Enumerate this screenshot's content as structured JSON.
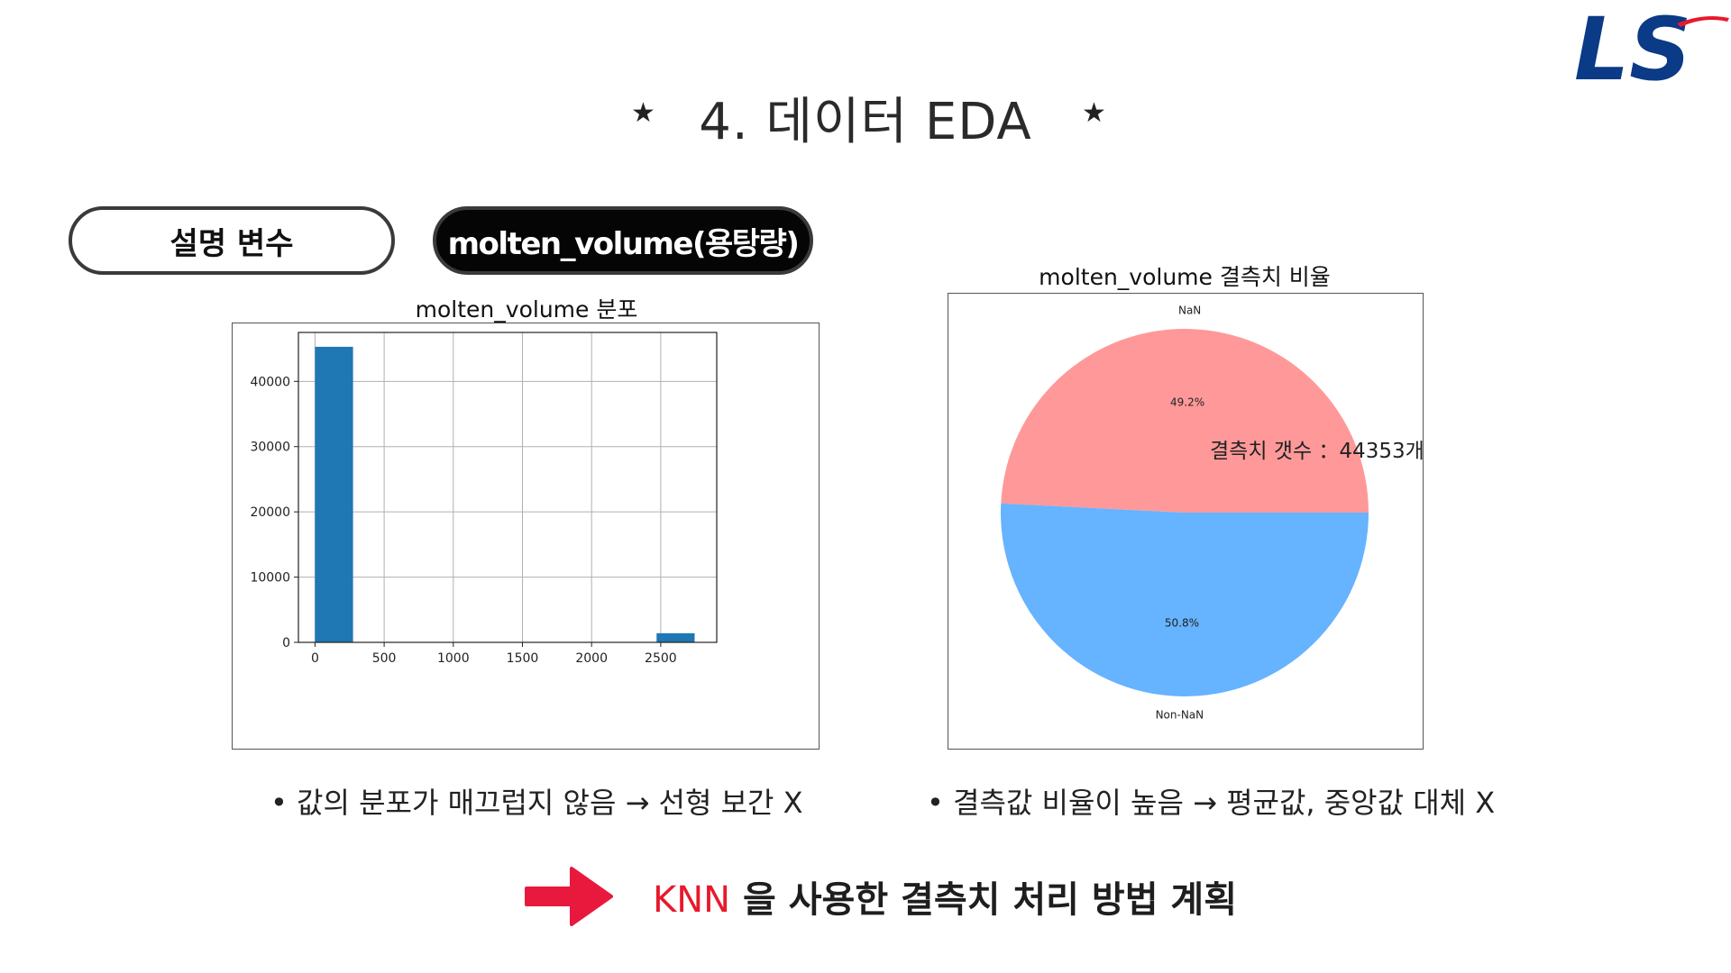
{
  "page": {
    "title": "4. 데이터 EDA",
    "star_left": "★",
    "star_right": "★"
  },
  "logo": {
    "text": "LS",
    "color": "#0b3a86",
    "accent": "#e8192c"
  },
  "pills": {
    "variable_label": "설명 변수",
    "feature_label": "molten_volume(용탕량)"
  },
  "bullets": {
    "left": "값의 분포가 매끄럽지 않음 → 선형 보간 X",
    "right": "결측값 비율이 높음 → 평균값, 중앙값 대체 X"
  },
  "conclusion": {
    "keyword": "KNN",
    "text": " 을 사용한 결측치 처리 방법 계획",
    "arrow_color": "#e8193c"
  },
  "chart_data": [
    {
      "type": "bar",
      "title": "molten_volume 분포",
      "xlabel": "",
      "ylabel": "",
      "bins": [
        [
          0,
          275
        ],
        [
          2470,
          2745
        ]
      ],
      "values": [
        45300,
        1400
      ],
      "xlim": [
        -120,
        2905
      ],
      "ylim": [
        0,
        47500
      ],
      "xticks": [
        0,
        500,
        1000,
        1500,
        2000,
        2500
      ],
      "yticks": [
        0,
        10000,
        20000,
        30000,
        40000
      ],
      "grid": true,
      "color": "#1f77b4"
    },
    {
      "type": "pie",
      "title": "molten_volume 결측치 비율",
      "labels": [
        "NaN",
        "Non-NaN"
      ],
      "values": [
        49.2,
        50.8
      ],
      "pct_labels": [
        "49.2%",
        "50.8%"
      ],
      "colors": [
        "#ff9999",
        "#66b3ff"
      ],
      "annotation": "결측치 갯수 ：44353개"
    }
  ]
}
